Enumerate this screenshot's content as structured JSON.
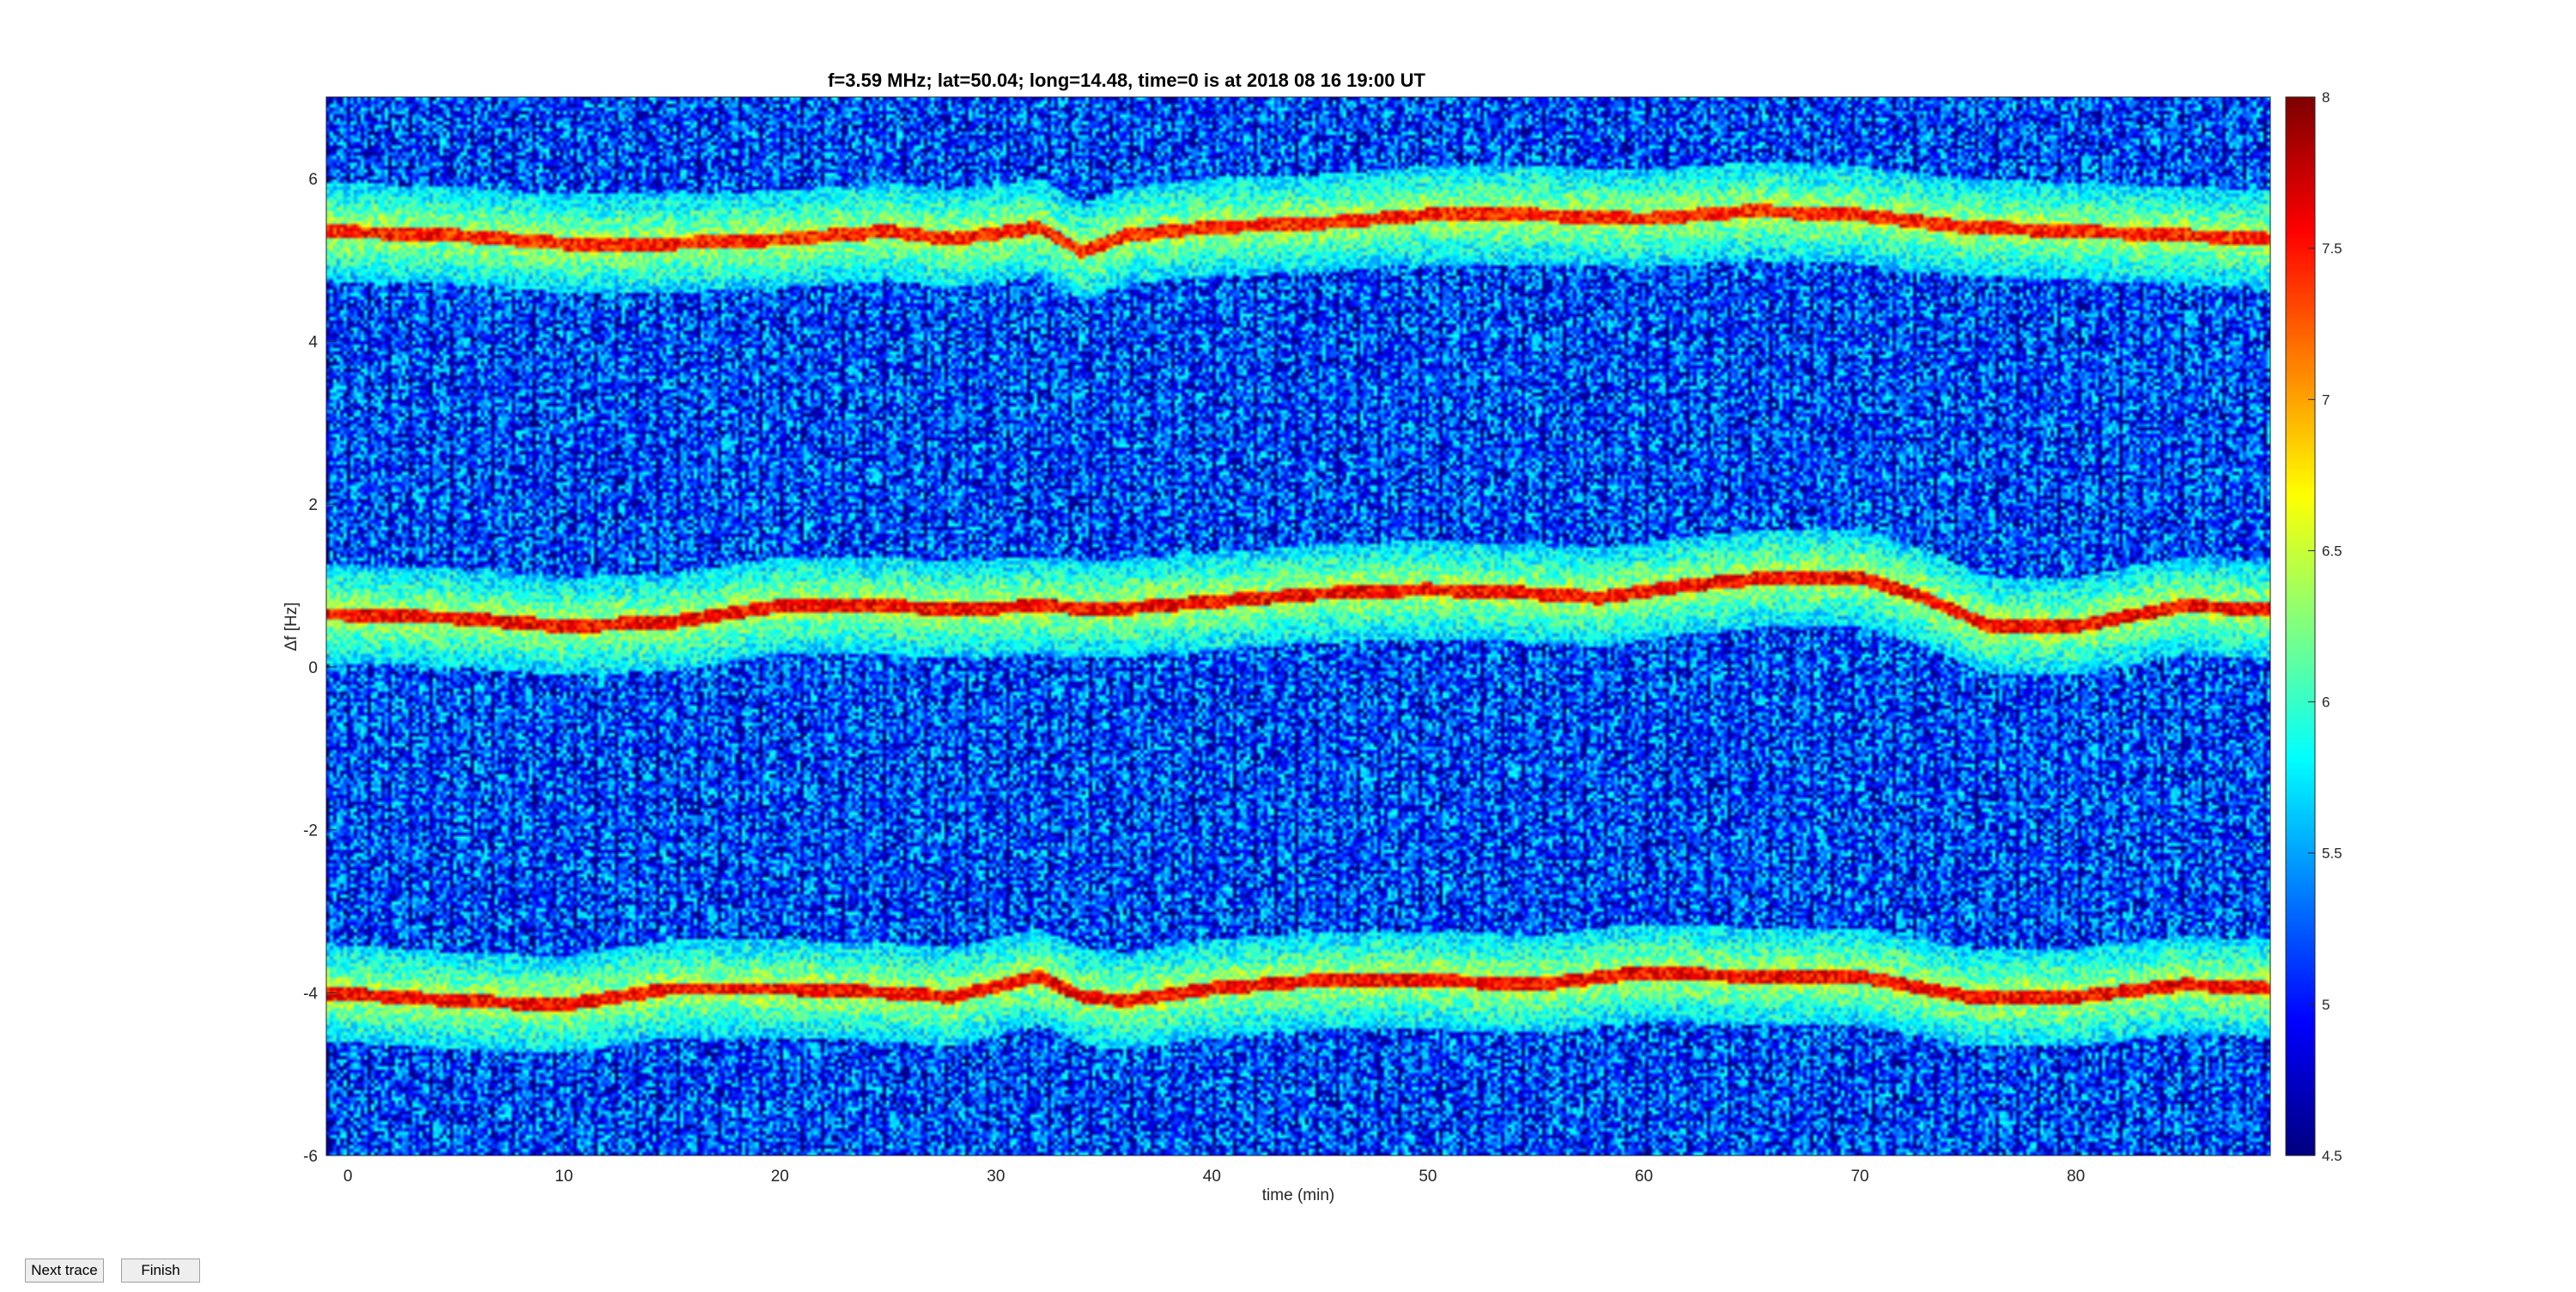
{
  "controls": {
    "next_label": "Next trace",
    "finish_label": "Finish"
  },
  "chart_data": {
    "type": "heatmap",
    "title": "f=3.59 MHz;  lat=50.04; long=14.48, time=0 is at 2018 08 16 19:00 UT",
    "xlabel": "time (min)",
    "ylabel": "Δf [Hz]",
    "xlim": [
      -1,
      89
    ],
    "ylim": [
      -6,
      7
    ],
    "x_ticks": [
      0,
      10,
      20,
      30,
      40,
      50,
      60,
      70,
      80
    ],
    "y_ticks": [
      -6,
      -4,
      -2,
      0,
      2,
      4,
      6
    ],
    "colormap": "jet",
    "clim": [
      4.5,
      8
    ],
    "colorbar_ticks": [
      "4.5",
      "5",
      "5.5",
      "6",
      "6.5",
      "7",
      "7.5",
      "8"
    ],
    "grid": false,
    "background_level": 5.2,
    "traces": [
      {
        "name": "upper",
        "points": [
          [
            -1,
            5.35
          ],
          [
            5,
            5.3
          ],
          [
            10,
            5.2
          ],
          [
            15,
            5.2
          ],
          [
            20,
            5.25
          ],
          [
            25,
            5.35
          ],
          [
            28,
            5.25
          ],
          [
            32,
            5.4
          ],
          [
            34,
            5.1
          ],
          [
            36,
            5.3
          ],
          [
            40,
            5.4
          ],
          [
            45,
            5.45
          ],
          [
            50,
            5.55
          ],
          [
            55,
            5.55
          ],
          [
            60,
            5.5
          ],
          [
            65,
            5.6
          ],
          [
            70,
            5.55
          ],
          [
            75,
            5.4
          ],
          [
            80,
            5.35
          ],
          [
            85,
            5.3
          ],
          [
            89,
            5.25
          ]
        ],
        "peak": 7.8
      },
      {
        "name": "middle",
        "points": [
          [
            -1,
            0.65
          ],
          [
            5,
            0.6
          ],
          [
            10,
            0.5
          ],
          [
            15,
            0.55
          ],
          [
            20,
            0.75
          ],
          [
            25,
            0.75
          ],
          [
            28,
            0.7
          ],
          [
            32,
            0.75
          ],
          [
            35,
            0.7
          ],
          [
            40,
            0.8
          ],
          [
            45,
            0.9
          ],
          [
            50,
            0.95
          ],
          [
            55,
            0.9
          ],
          [
            58,
            0.85
          ],
          [
            62,
            1.0
          ],
          [
            66,
            1.1
          ],
          [
            70,
            1.1
          ],
          [
            73,
            0.85
          ],
          [
            76,
            0.5
          ],
          [
            80,
            0.5
          ],
          [
            85,
            0.75
          ],
          [
            89,
            0.7
          ]
        ],
        "peak": 7.9
      },
      {
        "name": "lower",
        "points": [
          [
            -1,
            -4.0
          ],
          [
            5,
            -4.1
          ],
          [
            10,
            -4.15
          ],
          [
            15,
            -3.95
          ],
          [
            20,
            -3.95
          ],
          [
            25,
            -4.0
          ],
          [
            28,
            -4.05
          ],
          [
            32,
            -3.8
          ],
          [
            34,
            -4.05
          ],
          [
            36,
            -4.1
          ],
          [
            40,
            -3.95
          ],
          [
            45,
            -3.85
          ],
          [
            50,
            -3.85
          ],
          [
            55,
            -3.9
          ],
          [
            60,
            -3.75
          ],
          [
            65,
            -3.8
          ],
          [
            70,
            -3.8
          ],
          [
            75,
            -4.05
          ],
          [
            80,
            -4.05
          ],
          [
            85,
            -3.9
          ],
          [
            89,
            -3.95
          ]
        ],
        "peak": 7.9
      }
    ]
  }
}
